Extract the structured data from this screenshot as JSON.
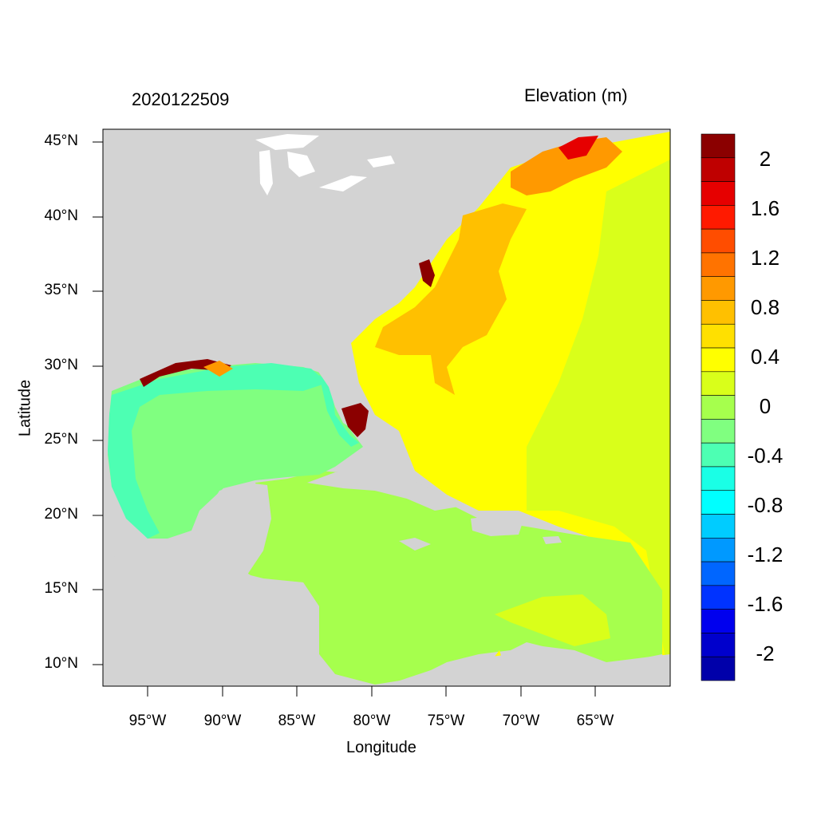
{
  "header": {
    "timestamp": "2020122509",
    "variable": "Elevation (m)"
  },
  "axes": {
    "xlabel": "Longitude",
    "ylabel": "Latitude",
    "x_ticks": [
      "95°W",
      "90°W",
      "85°W",
      "80°W",
      "75°W",
      "70°W",
      "65°W"
    ],
    "y_ticks": [
      "45°N",
      "40°N",
      "35°N",
      "30°N",
      "25°N",
      "20°N",
      "15°N",
      "10°N"
    ]
  },
  "colorbar": {
    "labels": [
      "2",
      "1.6",
      "1.2",
      "0.8",
      "0.4",
      "0",
      "-0.4",
      "-0.8",
      "-1.2",
      "-1.6",
      "-2"
    ],
    "colors": [
      "#8b0000",
      "#bf0000",
      "#e60000",
      "#ff1a00",
      "#ff4d00",
      "#ff7300",
      "#ff9900",
      "#ffc000",
      "#ffe000",
      "#ffff00",
      "#d9ff1a",
      "#a6ff4d",
      "#80ff80",
      "#4dffb3",
      "#1affe6",
      "#00ffff",
      "#00ccff",
      "#0099ff",
      "#0066ff",
      "#0033ff",
      "#0000ee",
      "#0000cc",
      "#0000aa"
    ]
  },
  "map": {
    "land_color": "#d3d3d3",
    "lake_color": "#ffffff"
  }
}
